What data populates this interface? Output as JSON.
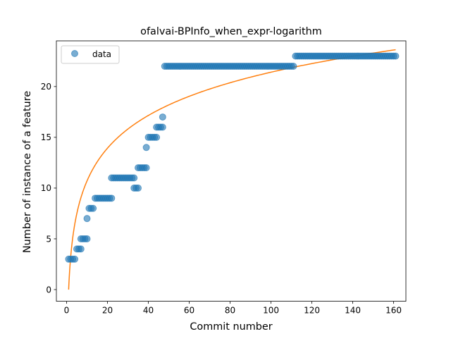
{
  "chart_data": {
    "type": "scatter",
    "title": "ofalvai-BPInfo_when_expr-logarithm",
    "xlabel": "Commit number",
    "ylabel": "Number of instance of a feature",
    "xlim": [
      -5,
      166
    ],
    "ylim": [
      -1.15,
      24.5
    ],
    "xticks": [
      0,
      20,
      40,
      60,
      80,
      100,
      120,
      140,
      160
    ],
    "yticks": [
      0,
      5,
      10,
      15,
      20
    ],
    "legend_position": "upper-left",
    "legend_label": "data",
    "colors": {
      "points": "#1f77b4",
      "fit": "#ff7f0e"
    },
    "series": [
      {
        "name": "data",
        "kind": "scatter",
        "segments": [
          {
            "y": 3,
            "x": [
              1,
              2,
              3,
              4
            ]
          },
          {
            "y": 4,
            "x": [
              5,
              6,
              7
            ]
          },
          {
            "y": 5,
            "x": [
              7,
              8,
              9,
              10
            ]
          },
          {
            "y": 7,
            "x": [
              10
            ]
          },
          {
            "y": 8,
            "x": [
              11,
              12,
              13
            ]
          },
          {
            "y": 9,
            "x": [
              14,
              15,
              16,
              17,
              18,
              19,
              20,
              21,
              22
            ]
          },
          {
            "y": 11,
            "x": [
              22,
              23,
              24,
              25,
              26,
              27,
              28,
              29,
              30,
              31,
              32,
              33
            ]
          },
          {
            "y": 10,
            "x": [
              33,
              34,
              35
            ]
          },
          {
            "y": 12,
            "x": [
              35,
              36,
              37,
              38,
              39
            ]
          },
          {
            "y": 14,
            "x": [
              39
            ]
          },
          {
            "y": 15,
            "x": [
              40,
              41,
              42,
              43,
              44
            ]
          },
          {
            "y": 16,
            "x": [
              44,
              45,
              46,
              47
            ]
          },
          {
            "y": 17,
            "x": [
              47
            ]
          },
          {
            "y": 22,
            "x_range": [
              48,
              111
            ]
          },
          {
            "y": 23,
            "x_range": [
              112,
              161
            ]
          }
        ]
      },
      {
        "name": "",
        "kind": "line",
        "model": "y = a * ln(x)",
        "a": 4.65,
        "x_range": [
          1,
          161
        ]
      }
    ]
  }
}
